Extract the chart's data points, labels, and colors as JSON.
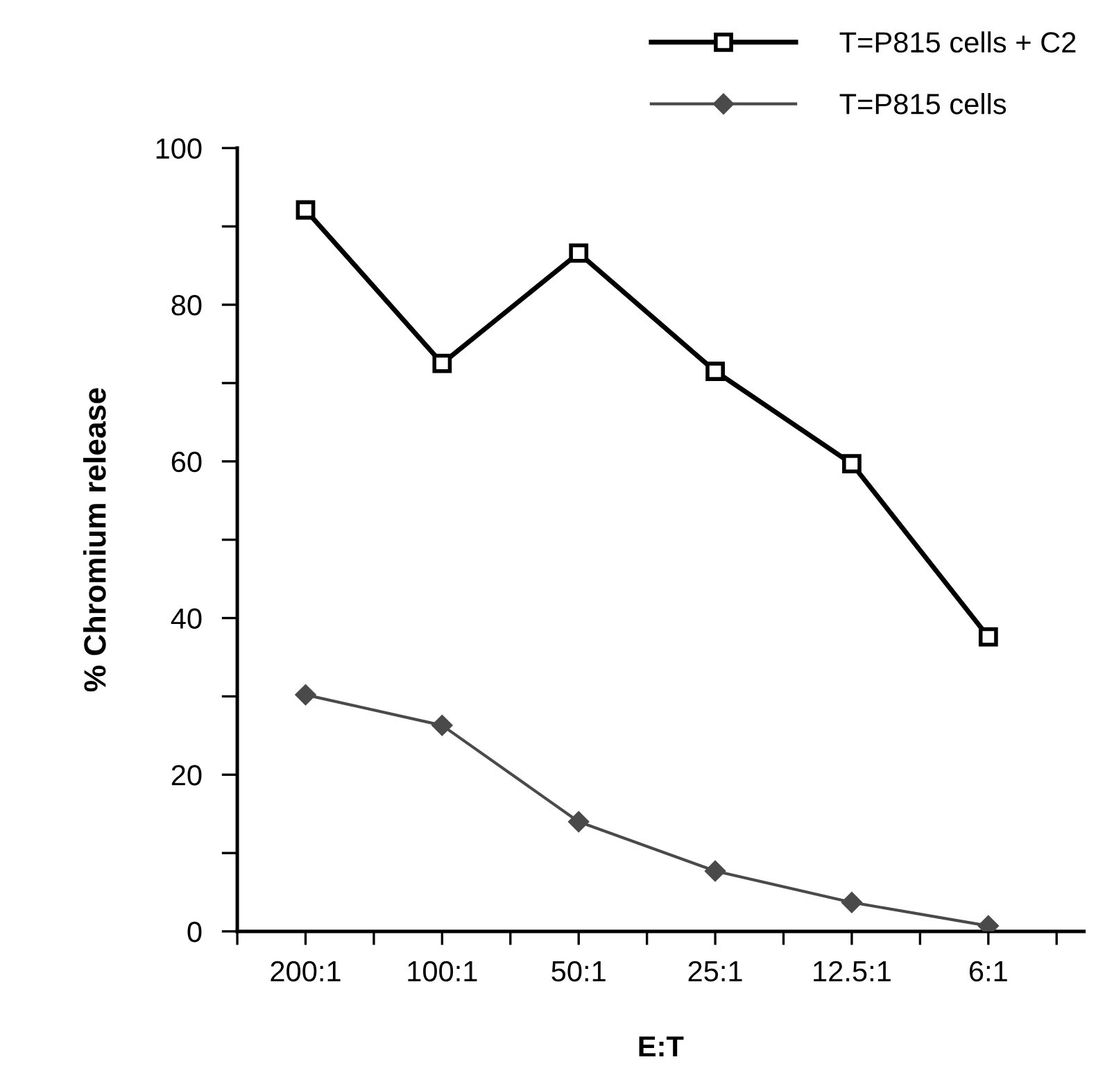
{
  "chart_data": {
    "type": "line",
    "xlabel": "E:T",
    "ylabel": "% Chromium release",
    "categories": [
      "200:1",
      "100:1",
      "50:1",
      "25:1",
      "12.5:1",
      "6:1"
    ],
    "series": [
      {
        "name": "T=P815 cells + C2",
        "color": "#000000",
        "marker": "square",
        "values": [
          92.1,
          72.5,
          86.6,
          71.5,
          59.7,
          37.6
        ]
      },
      {
        "name": "T=P815 cells",
        "color": "#4a4a4a",
        "marker": "diamond",
        "values": [
          30.2,
          26.3,
          14.0,
          7.7,
          3.7,
          0.7
        ]
      }
    ],
    "ylim": [
      0,
      100
    ],
    "yticks": [
      0,
      {
        "value": 10,
        "label": null
      },
      20,
      {
        "value": 30,
        "label": null
      },
      40,
      {
        "value": 50,
        "label": null
      },
      60,
      {
        "value": 70,
        "label": null
      },
      80,
      {
        "value": 90,
        "label": null
      },
      100
    ],
    "legend": "top right",
    "grid": false,
    "line_style": "solid"
  }
}
